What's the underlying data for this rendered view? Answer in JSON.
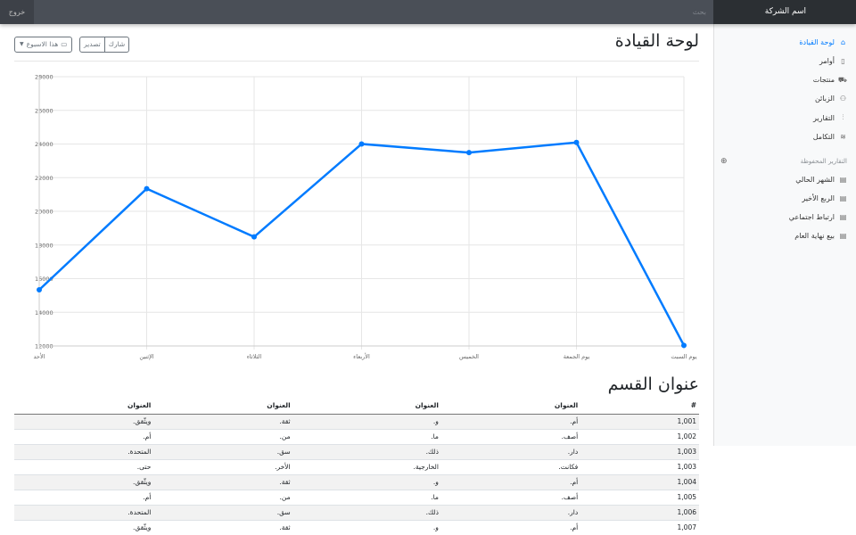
{
  "navbar": {
    "brand": "اسم الشركة",
    "search_placeholder": "بحث",
    "signout": "خروج"
  },
  "sidebar": {
    "items": [
      {
        "label": "لوحة القيادة",
        "icon": "home-icon",
        "active": true
      },
      {
        "label": "أوامر",
        "icon": "file-icon"
      },
      {
        "label": "منتجات",
        "icon": "shopping-cart-icon"
      },
      {
        "label": "الزبائن",
        "icon": "users-icon"
      },
      {
        "label": "التقارير",
        "icon": "bar-chart-icon"
      },
      {
        "label": "التكامل",
        "icon": "layers-icon"
      }
    ],
    "saved_heading": "التقارير المحفوظة",
    "saved": [
      {
        "label": "الشهر الحالي",
        "icon": "file-text-icon"
      },
      {
        "label": "الربع الأخير",
        "icon": "file-text-icon"
      },
      {
        "label": "ارتباط اجتماعي",
        "icon": "file-text-icon"
      },
      {
        "label": "بيع نهاية العام",
        "icon": "file-text-icon"
      }
    ]
  },
  "main": {
    "title": "لوحة القيادة",
    "share": "شارك",
    "export": "تصدير",
    "period": "هذا الاسبوع",
    "section_title": "عنوان القسم"
  },
  "chart_data": {
    "type": "line",
    "categories": [
      "الأحد",
      "الإثنين",
      "الثلاثاء",
      "الأربعاء",
      "الخميس",
      "يوم الجمعة",
      "يوم السبت"
    ],
    "values": [
      15339,
      21345,
      18483,
      24003,
      23489,
      24092,
      12034
    ],
    "ylim": [
      12000,
      28000
    ],
    "yticks": [
      12000,
      14000,
      16000,
      18000,
      20000,
      22000,
      24000,
      26000,
      28000
    ],
    "color": "#007bff",
    "grid": true
  },
  "table": {
    "headers": [
      "#",
      "العنوان",
      "العنوان",
      "العنوان",
      "العنوان"
    ],
    "rows": [
      [
        "1,001",
        "أم.",
        "و.",
        "ثقة.",
        "ويثّقق."
      ],
      [
        "1,002",
        "أصف.",
        "ما.",
        "من.",
        "أم."
      ],
      [
        "1,003",
        "دار.",
        "ذلك.",
        "سق.",
        "المتحدة."
      ],
      [
        "1,003",
        "فكانت.",
        "الخارجية.",
        "الأخر.",
        "حتى."
      ],
      [
        "1,004",
        "أم.",
        "و.",
        "ثقة.",
        "ويثّقق."
      ],
      [
        "1,005",
        "أصف.",
        "ما.",
        "من.",
        "أم."
      ],
      [
        "1,006",
        "دار.",
        "ذلك.",
        "سق.",
        "المتحدة."
      ],
      [
        "1,007",
        "أم.",
        "و.",
        "ثقة.",
        "ويثّقق."
      ]
    ]
  }
}
